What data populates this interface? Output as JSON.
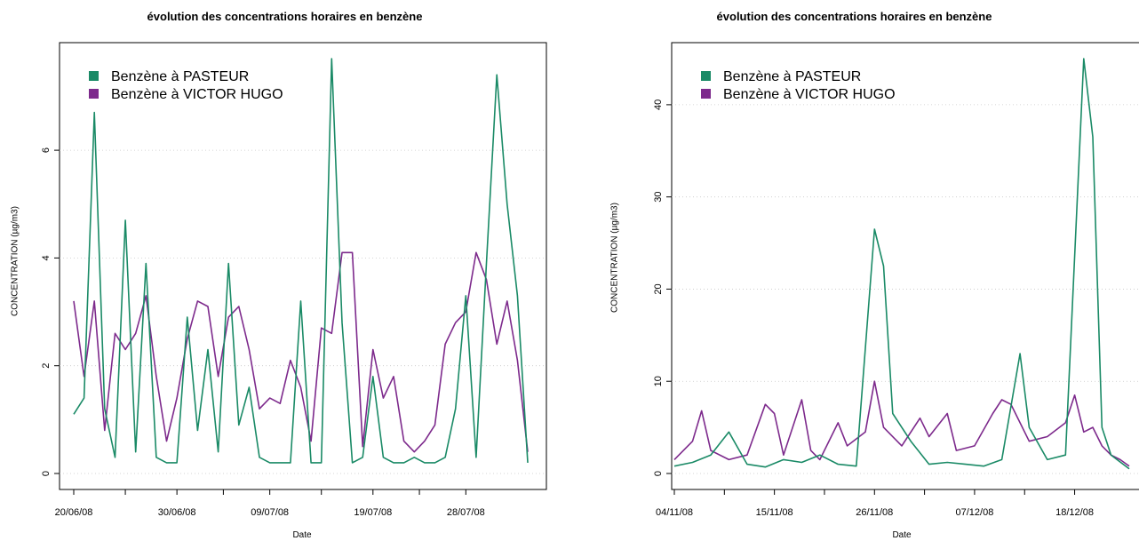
{
  "chart_data": [
    {
      "type": "line",
      "title": "évolution des concentrations horaires en benzène",
      "xlabel": "Date",
      "ylabel": "CONCENTRATION (µg/m3)",
      "x_range": [
        "20/06/08",
        "03/08/08"
      ],
      "ylim": [
        0,
        7.7
      ],
      "y_ticks": [
        0,
        2,
        4,
        6
      ],
      "x_ticks": [
        "20/06/08",
        "30/06/08",
        "09/07/08",
        "19/07/08",
        "28/07/08"
      ],
      "grid": "horizontal dotted",
      "legend_position": "top-left",
      "colors": {
        "pasteur": "#1a8a66",
        "victor_hugo": "#7d2a8c"
      },
      "series": [
        {
          "name": "Benzène à PASTEUR",
          "points": [
            {
              "x": "20/06/08",
              "y": 1.1
            },
            {
              "x": "21/06/08",
              "y": 1.4
            },
            {
              "x": "22/06/08",
              "y": 6.7
            },
            {
              "x": "23/06/08",
              "y": 1.2
            },
            {
              "x": "24/06/08",
              "y": 0.3
            },
            {
              "x": "25/06/08",
              "y": 4.7
            },
            {
              "x": "26/06/08",
              "y": 0.4
            },
            {
              "x": "27/06/08",
              "y": 3.9
            },
            {
              "x": "28/06/08",
              "y": 0.3
            },
            {
              "x": "29/06/08",
              "y": 0.2
            },
            {
              "x": "30/06/08",
              "y": 0.2
            },
            {
              "x": "01/07/08",
              "y": 2.9
            },
            {
              "x": "02/07/08",
              "y": 0.8
            },
            {
              "x": "03/07/08",
              "y": 2.3
            },
            {
              "x": "04/07/08",
              "y": 0.4
            },
            {
              "x": "05/07/08",
              "y": 3.9
            },
            {
              "x": "06/07/08",
              "y": 0.9
            },
            {
              "x": "07/07/08",
              "y": 1.6
            },
            {
              "x": "08/07/08",
              "y": 0.3
            },
            {
              "x": "09/07/08",
              "y": 0.2
            },
            {
              "x": "10/07/08",
              "y": 0.2
            },
            {
              "x": "11/07/08",
              "y": 0.2
            },
            {
              "x": "12/07/08",
              "y": 3.2
            },
            {
              "x": "13/07/08",
              "y": 0.2
            },
            {
              "x": "14/07/08",
              "y": 0.2
            },
            {
              "x": "15/07/08",
              "y": 7.7
            },
            {
              "x": "16/07/08",
              "y": 2.8
            },
            {
              "x": "17/07/08",
              "y": 0.2
            },
            {
              "x": "18/07/08",
              "y": 0.3
            },
            {
              "x": "19/07/08",
              "y": 1.8
            },
            {
              "x": "20/07/08",
              "y": 0.3
            },
            {
              "x": "21/07/08",
              "y": 0.2
            },
            {
              "x": "22/07/08",
              "y": 0.2
            },
            {
              "x": "23/07/08",
              "y": 0.3
            },
            {
              "x": "24/07/08",
              "y": 0.2
            },
            {
              "x": "25/07/08",
              "y": 0.2
            },
            {
              "x": "26/07/08",
              "y": 0.3
            },
            {
              "x": "27/07/08",
              "y": 1.2
            },
            {
              "x": "28/07/08",
              "y": 3.3
            },
            {
              "x": "29/07/08",
              "y": 0.3
            },
            {
              "x": "30/07/08",
              "y": 3.9
            },
            {
              "x": "31/07/08",
              "y": 7.4
            },
            {
              "x": "01/08/08",
              "y": 5.0
            },
            {
              "x": "02/08/08",
              "y": 3.3
            },
            {
              "x": "03/08/08",
              "y": 0.2
            }
          ]
        },
        {
          "name": "Benzène à VICTOR HUGO",
          "points": [
            {
              "x": "20/06/08",
              "y": 3.2
            },
            {
              "x": "21/06/08",
              "y": 1.8
            },
            {
              "x": "22/06/08",
              "y": 3.2
            },
            {
              "x": "23/06/08",
              "y": 0.8
            },
            {
              "x": "24/06/08",
              "y": 2.6
            },
            {
              "x": "25/06/08",
              "y": 2.3
            },
            {
              "x": "26/06/08",
              "y": 2.6
            },
            {
              "x": "27/06/08",
              "y": 3.3
            },
            {
              "x": "28/06/08",
              "y": 1.8
            },
            {
              "x": "29/06/08",
              "y": 0.6
            },
            {
              "x": "30/06/08",
              "y": 1.4
            },
            {
              "x": "01/07/08",
              "y": 2.5
            },
            {
              "x": "02/07/08",
              "y": 3.2
            },
            {
              "x": "03/07/08",
              "y": 3.1
            },
            {
              "x": "04/07/08",
              "y": 1.8
            },
            {
              "x": "05/07/08",
              "y": 2.9
            },
            {
              "x": "06/07/08",
              "y": 3.1
            },
            {
              "x": "07/07/08",
              "y": 2.3
            },
            {
              "x": "08/07/08",
              "y": 1.2
            },
            {
              "x": "09/07/08",
              "y": 1.4
            },
            {
              "x": "10/07/08",
              "y": 1.3
            },
            {
              "x": "11/07/08",
              "y": 2.1
            },
            {
              "x": "12/07/08",
              "y": 1.6
            },
            {
              "x": "13/07/08",
              "y": 0.6
            },
            {
              "x": "14/07/08",
              "y": 2.7
            },
            {
              "x": "15/07/08",
              "y": 2.6
            },
            {
              "x": "16/07/08",
              "y": 4.1
            },
            {
              "x": "17/07/08",
              "y": 4.1
            },
            {
              "x": "18/07/08",
              "y": 0.5
            },
            {
              "x": "19/07/08",
              "y": 2.3
            },
            {
              "x": "20/07/08",
              "y": 1.4
            },
            {
              "x": "21/07/08",
              "y": 1.8
            },
            {
              "x": "22/07/08",
              "y": 0.6
            },
            {
              "x": "23/07/08",
              "y": 0.4
            },
            {
              "x": "24/07/08",
              "y": 0.6
            },
            {
              "x": "25/07/08",
              "y": 0.9
            },
            {
              "x": "26/07/08",
              "y": 2.4
            },
            {
              "x": "27/07/08",
              "y": 2.8
            },
            {
              "x": "28/07/08",
              "y": 3.0
            },
            {
              "x": "29/07/08",
              "y": 4.1
            },
            {
              "x": "30/07/08",
              "y": 3.6
            },
            {
              "x": "31/07/08",
              "y": 2.4
            },
            {
              "x": "01/08/08",
              "y": 3.2
            },
            {
              "x": "02/08/08",
              "y": 2.1
            },
            {
              "x": "03/08/08",
              "y": 0.4
            }
          ]
        }
      ]
    },
    {
      "type": "line",
      "title": "évolution des concentrations horaires en benzène",
      "xlabel": "Date",
      "ylabel": "CONCENTRATION (µg/m3)",
      "x_range": [
        "04/11/08",
        "24/12/08"
      ],
      "ylim": [
        0,
        45
      ],
      "y_ticks": [
        0,
        10,
        20,
        30,
        40
      ],
      "x_ticks": [
        "04/11/08",
        "15/11/08",
        "26/11/08",
        "07/12/08",
        "18/12/08"
      ],
      "grid": "horizontal dotted",
      "legend_position": "top-left",
      "colors": {
        "pasteur": "#1a8a66",
        "victor_hugo": "#7d2a8c"
      },
      "series": [
        {
          "name": "Benzène à PASTEUR",
          "points": [
            {
              "x": "04/11/08",
              "y": 0.8
            },
            {
              "x": "06/11/08",
              "y": 1.2
            },
            {
              "x": "08/11/08",
              "y": 2.0
            },
            {
              "x": "10/11/08",
              "y": 4.5
            },
            {
              "x": "12/11/08",
              "y": 1.0
            },
            {
              "x": "14/11/08",
              "y": 0.7
            },
            {
              "x": "16/11/08",
              "y": 1.5
            },
            {
              "x": "18/11/08",
              "y": 1.2
            },
            {
              "x": "20/11/08",
              "y": 2.0
            },
            {
              "x": "22/11/08",
              "y": 1.0
            },
            {
              "x": "24/11/08",
              "y": 0.8
            },
            {
              "x": "26/11/08",
              "y": 26.5
            },
            {
              "x": "27/11/08",
              "y": 22.5
            },
            {
              "x": "28/11/08",
              "y": 6.5
            },
            {
              "x": "30/11/08",
              "y": 3.5
            },
            {
              "x": "02/12/08",
              "y": 1.0
            },
            {
              "x": "04/12/08",
              "y": 1.2
            },
            {
              "x": "06/12/08",
              "y": 1.0
            },
            {
              "x": "08/12/08",
              "y": 0.8
            },
            {
              "x": "10/12/08",
              "y": 1.5
            },
            {
              "x": "12/12/08",
              "y": 13.0
            },
            {
              "x": "13/12/08",
              "y": 5.0
            },
            {
              "x": "15/12/08",
              "y": 1.5
            },
            {
              "x": "17/12/08",
              "y": 2.0
            },
            {
              "x": "19/12/08",
              "y": 45.0
            },
            {
              "x": "20/12/08",
              "y": 36.5
            },
            {
              "x": "21/12/08",
              "y": 5.0
            },
            {
              "x": "22/12/08",
              "y": 2.0
            },
            {
              "x": "24/12/08",
              "y": 0.5
            }
          ]
        },
        {
          "name": "Benzène à VICTOR HUGO",
          "points": [
            {
              "x": "04/11/08",
              "y": 1.5
            },
            {
              "x": "06/11/08",
              "y": 3.5
            },
            {
              "x": "07/11/08",
              "y": 6.8
            },
            {
              "x": "08/11/08",
              "y": 2.5
            },
            {
              "x": "10/11/08",
              "y": 1.5
            },
            {
              "x": "12/11/08",
              "y": 2.0
            },
            {
              "x": "14/11/08",
              "y": 7.5
            },
            {
              "x": "15/11/08",
              "y": 6.5
            },
            {
              "x": "16/11/08",
              "y": 2.0
            },
            {
              "x": "18/11/08",
              "y": 8.0
            },
            {
              "x": "19/11/08",
              "y": 2.5
            },
            {
              "x": "20/11/08",
              "y": 1.5
            },
            {
              "x": "22/11/08",
              "y": 5.5
            },
            {
              "x": "23/11/08",
              "y": 3.0
            },
            {
              "x": "25/11/08",
              "y": 4.5
            },
            {
              "x": "26/11/08",
              "y": 10.0
            },
            {
              "x": "27/11/08",
              "y": 5.0
            },
            {
              "x": "29/11/08",
              "y": 3.0
            },
            {
              "x": "01/12/08",
              "y": 6.0
            },
            {
              "x": "02/12/08",
              "y": 4.0
            },
            {
              "x": "04/12/08",
              "y": 6.5
            },
            {
              "x": "05/12/08",
              "y": 2.5
            },
            {
              "x": "07/12/08",
              "y": 3.0
            },
            {
              "x": "09/12/08",
              "y": 6.5
            },
            {
              "x": "10/12/08",
              "y": 8.0
            },
            {
              "x": "11/12/08",
              "y": 7.5
            },
            {
              "x": "13/12/08",
              "y": 3.5
            },
            {
              "x": "15/12/08",
              "y": 4.0
            },
            {
              "x": "17/12/08",
              "y": 5.5
            },
            {
              "x": "18/12/08",
              "y": 8.5
            },
            {
              "x": "19/12/08",
              "y": 4.5
            },
            {
              "x": "20/12/08",
              "y": 5.0
            },
            {
              "x": "21/12/08",
              "y": 3.0
            },
            {
              "x": "22/12/08",
              "y": 2.0
            },
            {
              "x": "23/12/08",
              "y": 1.5
            },
            {
              "x": "24/12/08",
              "y": 0.8
            }
          ]
        }
      ]
    }
  ]
}
